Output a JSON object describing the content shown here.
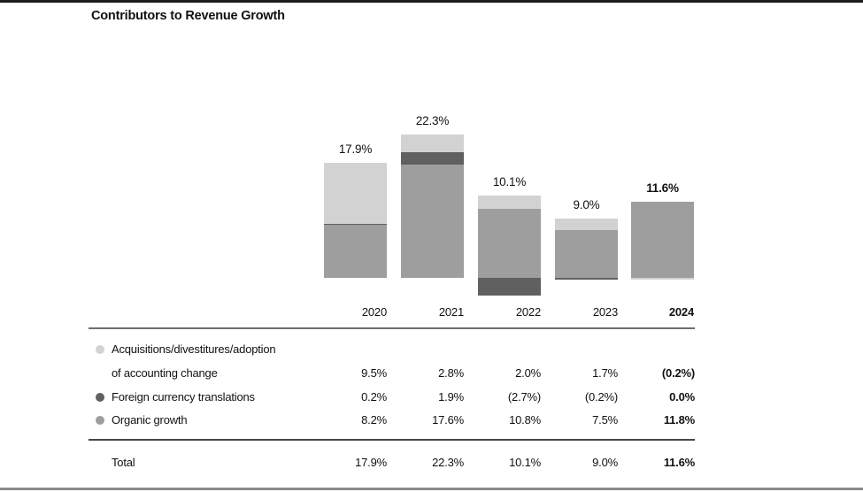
{
  "page": {
    "title": "Contributors to Revenue Growth"
  },
  "chart_data": {
    "type": "bar",
    "stacked": true,
    "title": "Contributors to Revenue Growth",
    "unit": "%",
    "grid": false,
    "legend_position": "bottom-left-table",
    "emphasize_last_category": true,
    "categories": [
      "2020",
      "2021",
      "2022",
      "2023",
      "2024"
    ],
    "series": [
      {
        "name": "Acquisitions/divestitures/adoption of accounting change",
        "color": "#d2d2d2",
        "values": [
          9.5,
          2.8,
          2.0,
          1.7,
          -0.2
        ]
      },
      {
        "name": "Foreign currency translations",
        "color": "#606060",
        "values": [
          0.2,
          1.9,
          -2.7,
          -0.2,
          0.0
        ]
      },
      {
        "name": "Organic growth",
        "color": "#9e9e9e",
        "values": [
          8.2,
          17.6,
          10.8,
          7.5,
          11.8
        ]
      }
    ],
    "totals": [
      17.9,
      22.3,
      10.1,
      9.0,
      11.6
    ],
    "bar_labels": [
      "17.9%",
      "22.3%",
      "10.1%",
      "9.0%",
      "11.6%"
    ]
  },
  "table": {
    "columns": [
      "2020",
      "2021",
      "2022",
      "2023",
      "2024"
    ],
    "rows": [
      {
        "label_line1": "Acquisitions/divestitures/adoption",
        "label_line2": "of accounting change",
        "values": [
          "9.5%",
          "2.8%",
          "2.0%",
          "1.7%",
          "(0.2%)"
        ]
      },
      {
        "label": "Foreign currency translations",
        "values": [
          "0.2%",
          "1.9%",
          "(2.7%)",
          "(0.2%)",
          "0.0%"
        ]
      },
      {
        "label": "Organic growth",
        "values": [
          "8.2%",
          "17.6%",
          "10.8%",
          "7.5%",
          "11.8%"
        ]
      }
    ],
    "total_row": {
      "label": "Total",
      "values": [
        "17.9%",
        "22.3%",
        "10.1%",
        "9.0%",
        "11.6%"
      ]
    }
  }
}
